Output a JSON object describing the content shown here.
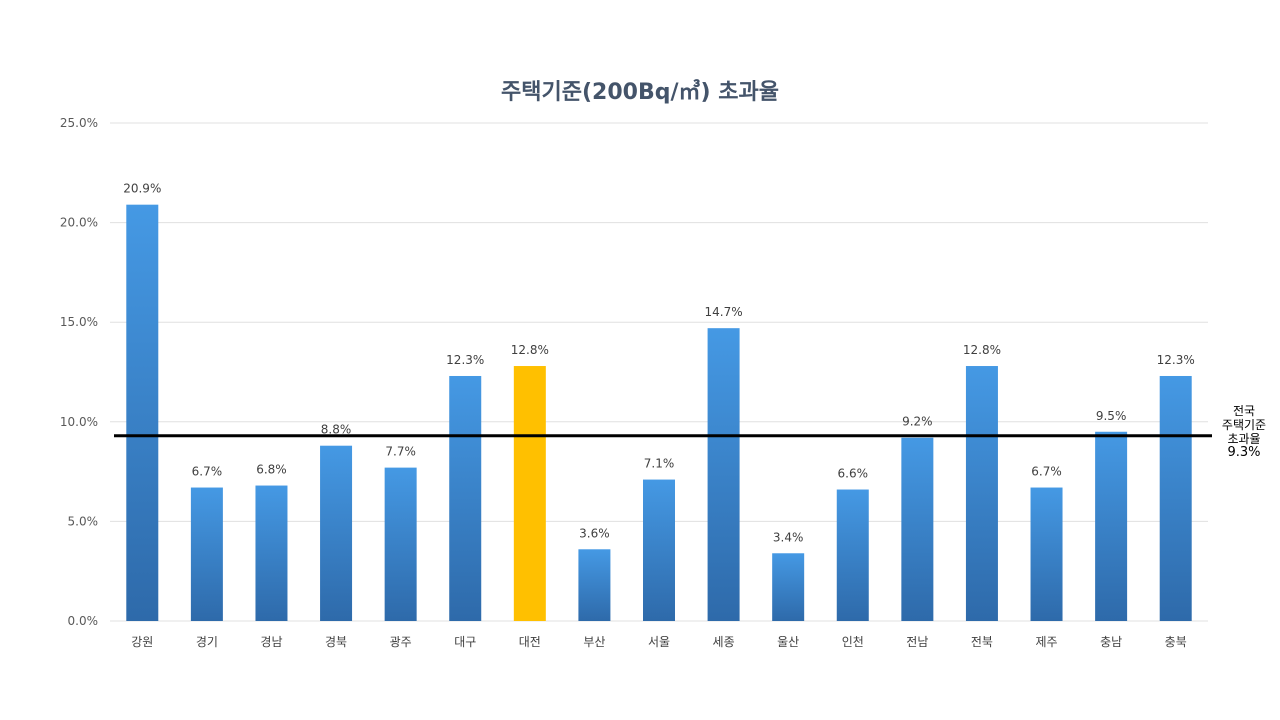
{
  "chart_data": {
    "type": "bar",
    "title": "주택기준(200Bq/㎥) 초과율",
    "categories": [
      "강원",
      "경기",
      "경남",
      "경북",
      "광주",
      "대구",
      "대전",
      "부산",
      "서울",
      "세종",
      "울산",
      "인천",
      "전남",
      "전북",
      "제주",
      "충남",
      "충북"
    ],
    "values": [
      20.9,
      6.7,
      6.8,
      8.8,
      7.7,
      12.3,
      12.8,
      3.6,
      7.1,
      14.7,
      3.4,
      6.6,
      9.2,
      12.8,
      6.7,
      9.5,
      12.3
    ],
    "data_labels": [
      "20.9%",
      "6.7%",
      "6.8%",
      "8.8%",
      "7.7%",
      "12.3%",
      "12.8%",
      "3.6%",
      "7.1%",
      "14.7%",
      "3.4%",
      "6.6%",
      "9.2%",
      "12.8%",
      "6.7%",
      "9.5%",
      "12.3%"
    ],
    "highlight_category": "대전",
    "ylim": [
      0,
      25
    ],
    "yticks": [
      "0.0%",
      "5.0%",
      "10.0%",
      "15.0%",
      "20.0%",
      "25.0%"
    ],
    "grid": true,
    "reference_line": {
      "value": 9.3,
      "label_lines": [
        "전국",
        "주택기준",
        "초과율"
      ],
      "value_label": "9.3%"
    },
    "colors": {
      "bar_top": "#4599e4",
      "bar_bottom": "#2e6aaa",
      "highlight": "#ffc000",
      "reference_line": "#000000",
      "grid": "#e0e0e0",
      "title": "#44546a"
    }
  }
}
